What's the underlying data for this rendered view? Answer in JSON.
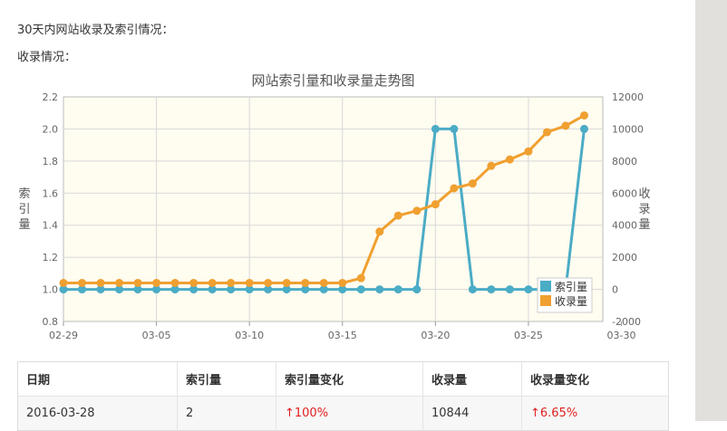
{
  "header": {
    "line1": "30天内网站收录及索引情况：",
    "line2": "收录情况："
  },
  "chart_data": {
    "type": "line",
    "title": "网站索引量和收录量走势图",
    "x": [
      "02-29",
      "03-01",
      "03-02",
      "03-03",
      "03-04",
      "03-05",
      "03-06",
      "03-07",
      "03-08",
      "03-09",
      "03-10",
      "03-11",
      "03-12",
      "03-13",
      "03-14",
      "03-15",
      "03-16",
      "03-17",
      "03-18",
      "03-19",
      "03-20",
      "03-21",
      "03-22",
      "03-23",
      "03-24",
      "03-25",
      "03-26",
      "03-27",
      "03-28"
    ],
    "x_ticks": [
      "02-29",
      "03-05",
      "03-10",
      "03-15",
      "03-20",
      "03-25",
      "03-30"
    ],
    "ylabel_left": "索引量",
    "ylabel_right": "收录量",
    "ylim_left": [
      0.8,
      2.2
    ],
    "y_ticks_left": [
      "0.8",
      "1.0",
      "1.2",
      "1.4",
      "1.6",
      "1.8",
      "2.0",
      "2.2"
    ],
    "ylim_right": [
      -2000,
      12000
    ],
    "y_ticks_right": [
      "-2000",
      "0",
      "2000",
      "4000",
      "6000",
      "8000",
      "10000",
      "12000"
    ],
    "series": [
      {
        "name": "索引量",
        "axis": "left",
        "color": "#4bacc6",
        "values": [
          1,
          1,
          1,
          1,
          1,
          1,
          1,
          1,
          1,
          1,
          1,
          1,
          1,
          1,
          1,
          1,
          1,
          1,
          1,
          1,
          2,
          2,
          1,
          1,
          1,
          1,
          1,
          1,
          2
        ]
      },
      {
        "name": "收录量",
        "axis": "right",
        "color": "#f0a030",
        "values": [
          400,
          400,
          400,
          400,
          400,
          400,
          400,
          400,
          400,
          400,
          400,
          400,
          400,
          400,
          400,
          400,
          700,
          3600,
          4600,
          4900,
          5300,
          6300,
          6600,
          7700,
          8100,
          8600,
          9800,
          10200,
          10844
        ]
      }
    ],
    "legend_position": "bottom-right",
    "grid": true,
    "plot_background": "#fffcf0"
  },
  "table": {
    "columns": [
      "日期",
      "索引量",
      "索引量变化",
      "收录量",
      "收录量变化"
    ],
    "rows": [
      [
        "2016-03-28",
        "2",
        "↑100%",
        "10844",
        "↑6.65%"
      ]
    ]
  }
}
